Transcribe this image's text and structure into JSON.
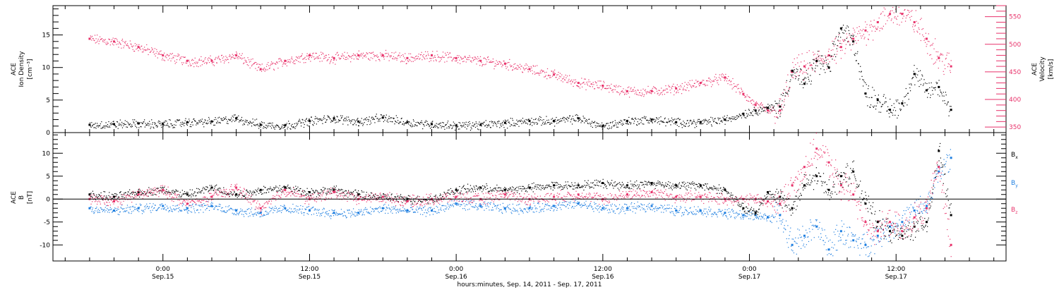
{
  "colors": {
    "black": "#000000",
    "pink": "#e8336b",
    "blue": "#1f7fe0",
    "axis": "#000000"
  },
  "chart_data": [
    {
      "id": "top-panel",
      "type": "scatter",
      "left_ylabel": [
        "ACE",
        "Ion Density",
        "[cm⁻³]"
      ],
      "right_ylabel": [
        "ACE",
        "Velocity",
        "[km/s]"
      ],
      "left_ylim": [
        0,
        19.5
      ],
      "left_ticks": [
        0,
        5,
        10,
        15
      ],
      "right_ylim": [
        340,
        570
      ],
      "right_ticks": [
        350,
        400,
        450,
        500,
        550
      ],
      "grid": false,
      "series": [
        {
          "color": "black",
          "axis": "left",
          "x": [
            -6,
            -4,
            -2,
            0,
            2,
            4,
            6,
            8,
            10,
            12,
            14,
            16,
            18,
            20,
            22,
            24,
            26,
            28,
            30,
            32,
            34,
            36,
            38,
            40,
            42,
            44,
            46,
            47.5,
            48.5,
            49.5,
            50.5,
            51.5,
            52.5,
            53.5,
            54.5,
            55.5,
            56.5,
            57.5,
            58.5,
            59.5,
            60.5,
            61.5,
            62.5,
            63.5,
            64.5
          ],
          "values": [
            1.2,
            1.3,
            1.4,
            1.3,
            1.6,
            1.7,
            2.2,
            1.2,
            1.1,
            1.8,
            2.2,
            1.7,
            2.3,
            1.6,
            1.3,
            1.1,
            1.2,
            1.5,
            1.8,
            1.8,
            2.2,
            1.0,
            1.8,
            2.0,
            1.6,
            1.6,
            2.0,
            2.9,
            3.4,
            3.8,
            4.0,
            9.5,
            7.5,
            11.0,
            10.0,
            16.0,
            14.0,
            6.0,
            5.0,
            3.5,
            4.5,
            9.0,
            6.5,
            7.0,
            3.5
          ]
        },
        {
          "color": "pink",
          "axis": "right",
          "x": [
            -6,
            -4,
            -2,
            0,
            2,
            4,
            6,
            8,
            10,
            12,
            14,
            16,
            18,
            20,
            22,
            24,
            26,
            28,
            30,
            32,
            34,
            36,
            38,
            40,
            42,
            44,
            46,
            47.5,
            48.5,
            49.5,
            50.5,
            51.5,
            52.5,
            53.5,
            54.5,
            55.5,
            56.5,
            57.5,
            58.5,
            59.5,
            60.5,
            61.5,
            62.5,
            63.5,
            64.5
          ],
          "values": [
            510,
            505,
            495,
            480,
            470,
            470,
            480,
            455,
            470,
            480,
            475,
            480,
            480,
            475,
            480,
            475,
            470,
            465,
            455,
            445,
            430,
            425,
            415,
            415,
            420,
            430,
            440,
            410,
            390,
            380,
            380,
            450,
            460,
            470,
            480,
            495,
            510,
            525,
            540,
            555,
            555,
            540,
            510,
            475,
            460
          ]
        }
      ]
    },
    {
      "id": "bottom-panel",
      "type": "scatter",
      "left_ylabel": [
        "ACE",
        "B",
        "[nT]"
      ],
      "ylim": [
        -13.5,
        14.5
      ],
      "ticks": [
        -10,
        -5,
        0,
        5,
        10
      ],
      "zero_line": true,
      "grid": false,
      "series": [
        {
          "name": "B",
          "subscript": "x",
          "color": "black",
          "x": [
            -6,
            -4,
            -2,
            0,
            2,
            4,
            6,
            8,
            10,
            12,
            14,
            16,
            18,
            20,
            22,
            24,
            26,
            28,
            30,
            32,
            34,
            36,
            38,
            40,
            42,
            44,
            46,
            47.5,
            48.5,
            49.5,
            50.5,
            51.5,
            52.5,
            53.5,
            54.5,
            55.5,
            56.5,
            57.5,
            58.5,
            59.5,
            60.5,
            61.5,
            62.5,
            63.5,
            64.5
          ],
          "values": [
            1.0,
            0.5,
            1.5,
            2.0,
            1.0,
            2.5,
            1.0,
            2.0,
            2.5,
            1.5,
            2.0,
            1.0,
            0.5,
            0.0,
            0.0,
            2.0,
            2.5,
            2.0,
            2.5,
            3.0,
            3.0,
            3.5,
            3.0,
            3.5,
            3.0,
            3.0,
            2.0,
            -2.0,
            -3.0,
            1.5,
            0.5,
            -2.0,
            3.0,
            5.0,
            2.0,
            5.0,
            6.0,
            -1.0,
            -5.0,
            -7.0,
            -8.0,
            -6.0,
            -5.0,
            10.5,
            -3.5
          ]
        },
        {
          "name": "B",
          "subscript": "y",
          "color": "blue",
          "x": [
            -6,
            -4,
            -2,
            0,
            2,
            4,
            6,
            8,
            10,
            12,
            14,
            16,
            18,
            20,
            22,
            24,
            26,
            28,
            30,
            32,
            34,
            36,
            38,
            40,
            42,
            44,
            46,
            47.5,
            48.5,
            49.5,
            50.5,
            51.5,
            52.5,
            53.5,
            54.5,
            55.5,
            56.5,
            57.5,
            58.5,
            59.5,
            60.5,
            61.5,
            62.5,
            63.5,
            64.5
          ],
          "values": [
            -2.0,
            -2.5,
            -2.0,
            -1.5,
            -2.0,
            -1.5,
            -2.5,
            -3.0,
            -2.0,
            -2.5,
            -3.0,
            -3.0,
            -2.0,
            -2.5,
            -2.5,
            -1.0,
            -1.5,
            -2.0,
            -2.0,
            -1.5,
            -1.0,
            -2.0,
            -2.0,
            -1.5,
            -2.5,
            -2.5,
            -3.0,
            -3.5,
            -3.5,
            -4.0,
            -3.5,
            -10.0,
            -8.0,
            -6.0,
            -11.0,
            -7.0,
            -9.0,
            -10.0,
            -8.0,
            -6.0,
            -5.0,
            -2.5,
            -1.5,
            6.0,
            9.0
          ]
        },
        {
          "name": "B",
          "subscript": "z",
          "color": "pink",
          "x": [
            -6,
            -4,
            -2,
            0,
            2,
            4,
            6,
            8,
            10,
            12,
            14,
            16,
            18,
            20,
            22,
            24,
            26,
            28,
            30,
            32,
            34,
            36,
            38,
            40,
            42,
            44,
            46,
            47.5,
            48.5,
            49.5,
            50.5,
            51.5,
            52.5,
            53.5,
            54.5,
            55.5,
            56.5,
            57.5,
            58.5,
            59.5,
            60.5,
            61.5,
            62.5,
            63.5,
            64.5
          ],
          "values": [
            0.0,
            -0.5,
            1.0,
            2.0,
            -1.0,
            0.5,
            2.5,
            -2.0,
            2.0,
            0.0,
            1.5,
            0.0,
            0.5,
            -0.5,
            0.0,
            0.5,
            0.0,
            1.0,
            0.0,
            0.5,
            1.0,
            0.0,
            1.0,
            1.5,
            0.5,
            0.5,
            0.0,
            0.0,
            0.0,
            -0.5,
            -1.0,
            3.0,
            7.0,
            11.0,
            8.0,
            3.0,
            1.0,
            -5.0,
            -7.0,
            -5.0,
            -7.0,
            -4.0,
            -2.0,
            7.0,
            -10.0
          ]
        }
      ]
    }
  ],
  "x_axis": {
    "xlim": [
      -9,
      69
    ],
    "major_ticks": [
      {
        "x": 0,
        "time": "0:00",
        "date": "Sep.15"
      },
      {
        "x": 12,
        "time": "12:00",
        "date": "Sep.15"
      },
      {
        "x": 24,
        "time": "0:00",
        "date": "Sep.16"
      },
      {
        "x": 36,
        "time": "12:00",
        "date": "Sep.16"
      },
      {
        "x": 48,
        "time": "0:00",
        "date": "Sep.17"
      },
      {
        "x": 60,
        "time": "12:00",
        "date": "Sep.17"
      }
    ],
    "xlabel": "hours:minutes, Sep. 14, 2011 - Sep. 17, 2011"
  }
}
